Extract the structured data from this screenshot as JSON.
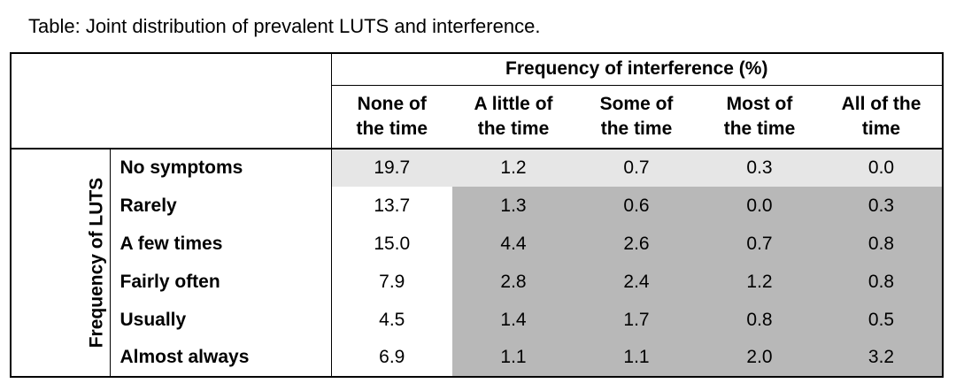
{
  "caption": "Table: Joint distribution of prevalent LUTS and interference.",
  "group_header": "Frequency of interference (%)",
  "side_header": "Frequency of LUTS",
  "columns": [
    {
      "line1": "None of",
      "line2": "the time"
    },
    {
      "line1": "A little of",
      "line2": "the time"
    },
    {
      "line1": "Some of",
      "line2": "the time"
    },
    {
      "line1": "Most of",
      "line2": "the time"
    },
    {
      "line1": "All of the",
      "line2": "time"
    }
  ],
  "rows": [
    {
      "label": "No symptoms",
      "values": [
        "19.7",
        "1.2",
        "0.7",
        "0.3",
        "0.0"
      ]
    },
    {
      "label": "Rarely",
      "values": [
        "13.7",
        "1.3",
        "0.6",
        "0.0",
        "0.3"
      ]
    },
    {
      "label": "A few times",
      "values": [
        "15.0",
        "4.4",
        "2.6",
        "0.7",
        "0.8"
      ]
    },
    {
      "label": "Fairly often",
      "values": [
        "7.9",
        "2.8",
        "2.4",
        "1.2",
        "0.8"
      ]
    },
    {
      "label": "Usually",
      "values": [
        "4.5",
        "1.4",
        "1.7",
        "0.8",
        "0.5"
      ]
    },
    {
      "label": "Almost always",
      "values": [
        "6.9",
        "1.1",
        "1.1",
        "2.0",
        "3.2"
      ]
    }
  ],
  "shading": {
    "white": "#ffffff",
    "light": "#e6e6e6",
    "dark": "#b8b8b8"
  }
}
